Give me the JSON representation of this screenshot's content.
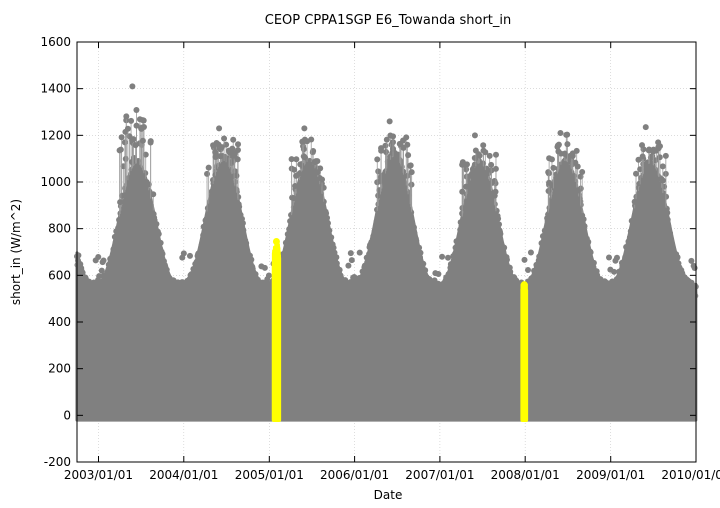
{
  "chart_data": {
    "type": "scatter",
    "title": "CEOP CPPA1SGP E6_Towanda  short_in",
    "xlabel": "Date",
    "ylabel": "short_in (W/m^2)",
    "ylim": [
      -200,
      1600
    ],
    "xlim": [
      "2002-10-01",
      "2010-01-01"
    ],
    "yticks": [
      -200,
      0,
      200,
      400,
      600,
      800,
      1000,
      1200,
      1400,
      1600
    ],
    "xticks": [
      "2003/01/01",
      "2004/01/01",
      "2005/01/01",
      "2006/01/01",
      "2007/01/01",
      "2008/01/01",
      "2009/01/01",
      "2010/01/01"
    ],
    "grid": true,
    "colors": {
      "normal": "#808080",
      "flagged": "#ffff00"
    },
    "series": [
      {
        "description_color": "gray",
        "annual_envelope": [
          {
            "year": 2003,
            "peak_date": "2003-06-15",
            "peak_max": 1080,
            "outliers_max": 1410
          },
          {
            "year": 2004,
            "peak_date": "2004-06-20",
            "peak_max": 1090,
            "outliers_max": 1230
          },
          {
            "year": 2005,
            "peak_date": "2005-06-20",
            "peak_max": 1090,
            "outliers_max": 1230
          },
          {
            "year": 2006,
            "peak_date": "2006-06-20",
            "peak_max": 1110,
            "outliers_max": 1260
          },
          {
            "year": 2007,
            "peak_date": "2007-06-20",
            "peak_max": 1080,
            "outliers_max": 1200
          },
          {
            "year": 2008,
            "peak_date": "2008-06-20",
            "peak_max": 1090,
            "outliers_max": 1210
          },
          {
            "year": 2009,
            "peak_date": "2009-06-20",
            "peak_max": 1080,
            "outliers_max": 1235
          }
        ],
        "winter_max": 560,
        "min_value": -25
      },
      {
        "description_color": "yellow",
        "flagged_segments": [
          {
            "start": "2005-01-20",
            "end": "2005-02-12",
            "max": 745,
            "min": -20
          },
          {
            "start": "2007-12-20",
            "end": "2008-01-05",
            "max": 560,
            "min": -20
          }
        ]
      }
    ]
  }
}
